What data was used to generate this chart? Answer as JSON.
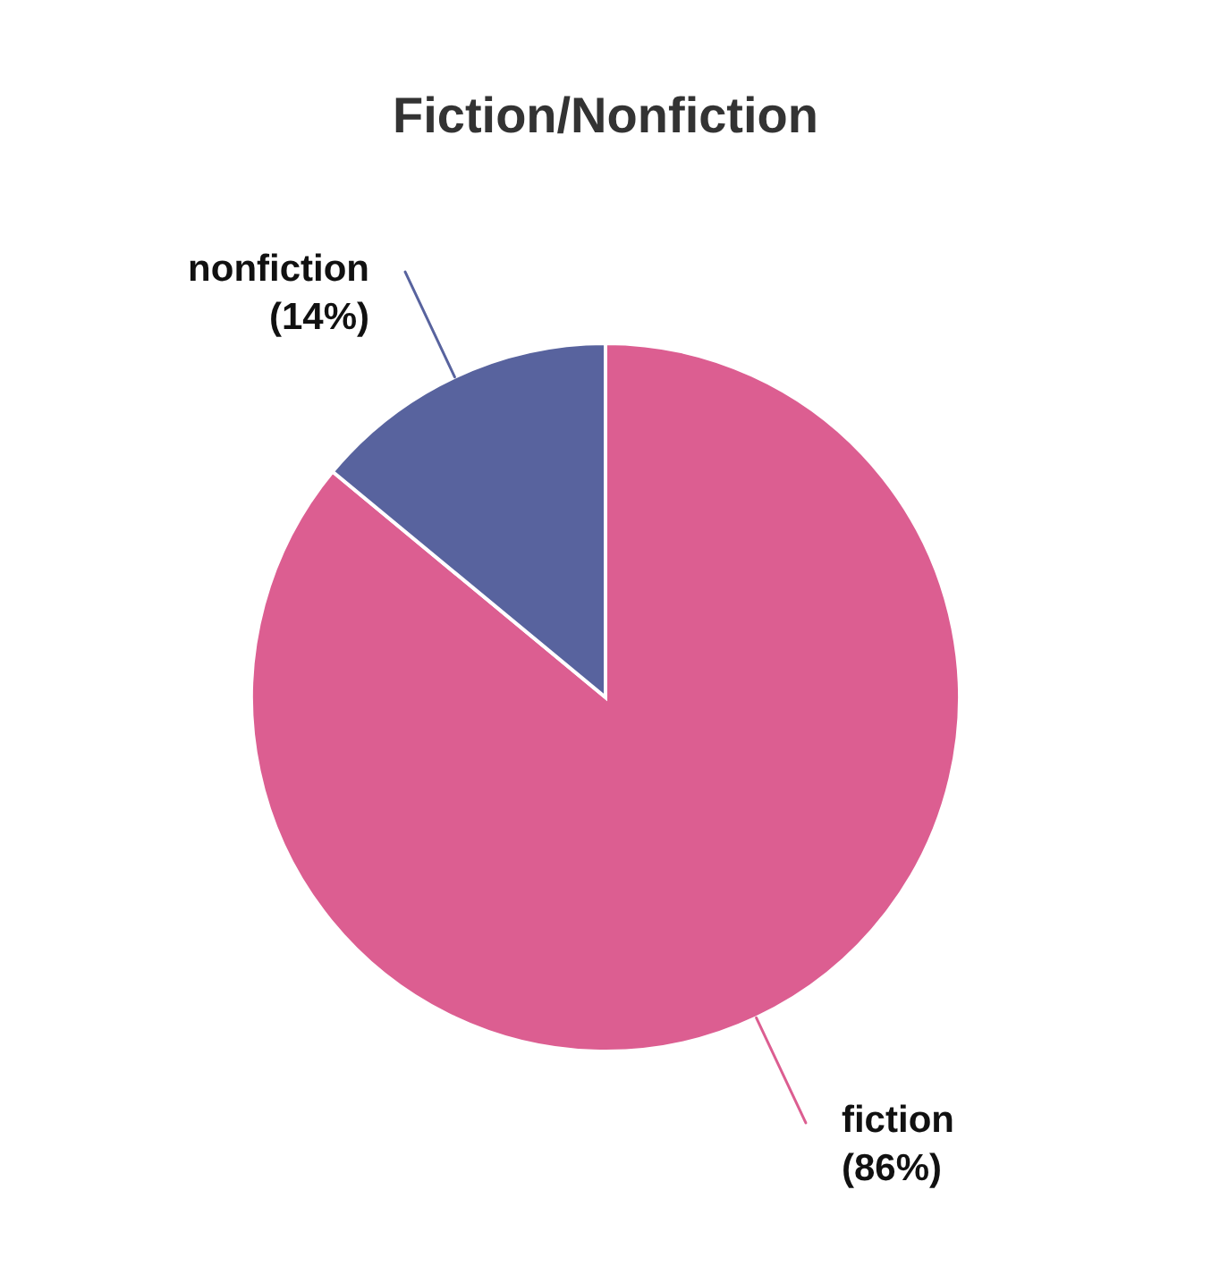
{
  "chart_data": {
    "type": "pie",
    "title": "Fiction/Nonfiction",
    "categories": [
      "fiction",
      "nonfiction"
    ],
    "values": [
      86,
      14
    ],
    "colors": [
      "#dc5e91",
      "#58639e"
    ],
    "value_labels": [
      "(86%)",
      "(14%)"
    ]
  }
}
